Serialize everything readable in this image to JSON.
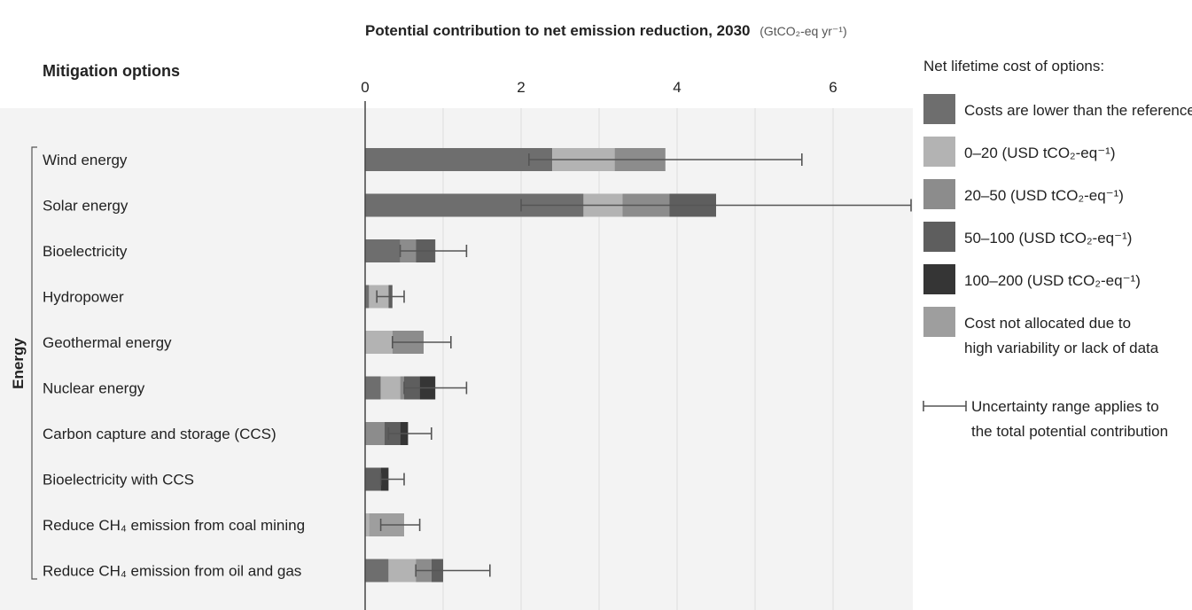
{
  "chart_data": {
    "type": "bar",
    "stacked": true,
    "orientation": "horizontal",
    "title": "Potential contribution to net emission reduction, 2030",
    "title_unit": "(GtCO₂-eq yr⁻¹)",
    "row_header": "Mitigation options",
    "group_label": "Energy",
    "xlim": [
      0,
      7
    ],
    "x_ticks": [
      0,
      2,
      4,
      6
    ],
    "grid": true,
    "legend_position": "right",
    "legend_title": "Net lifetime cost of options:",
    "categories": [
      "Wind energy",
      "Solar energy",
      "Bioelectricity",
      "Hydropower",
      "Geothermal energy",
      "Nuclear energy",
      "Carbon capture and storage (CCS)",
      "Bioelectricity with CCS",
      "Reduce CH₄ emission from coal mining",
      "Reduce CH₄ emission from oil and gas"
    ],
    "series": [
      {
        "name": "Costs are lower than the reference",
        "color": "#6e6e6e",
        "values": [
          2.4,
          2.8,
          0.45,
          0.05,
          0.0,
          0.2,
          0.0,
          0.0,
          0.0,
          0.3
        ]
      },
      {
        "name": "0–20 (USD tCO₂-eq⁻¹)",
        "color": "#b3b3b3",
        "values": [
          0.8,
          0.5,
          0.0,
          0.25,
          0.35,
          0.25,
          0.0,
          0.0,
          0.05,
          0.35
        ]
      },
      {
        "name": "20–50 (USD tCO₂-eq⁻¹)",
        "color": "#8c8c8c",
        "values": [
          0.65,
          0.6,
          0.2,
          0.0,
          0.4,
          0.05,
          0.25,
          0.0,
          0.0,
          0.2
        ]
      },
      {
        "name": "50–100 (USD tCO₂-eq⁻¹)",
        "color": "#5e5e5e",
        "values": [
          0.0,
          0.6,
          0.25,
          0.05,
          0.0,
          0.2,
          0.2,
          0.2,
          0.0,
          0.15
        ]
      },
      {
        "name": "100–200 (USD tCO₂-eq⁻¹)",
        "color": "#353535",
        "values": [
          0.0,
          0.0,
          0.0,
          0.0,
          0.0,
          0.2,
          0.1,
          0.1,
          0.0,
          0.0
        ]
      },
      {
        "name": "Cost not allocated due to high variability or lack of data",
        "color": "#9e9e9e",
        "values": [
          0.0,
          0.0,
          0.0,
          0.0,
          0.0,
          0.0,
          0.0,
          0.0,
          0.45,
          0.0
        ]
      }
    ],
    "uncertainty": [
      [
        2.1,
        5.6
      ],
      [
        2.0,
        7.0
      ],
      [
        0.45,
        1.3
      ],
      [
        0.15,
        0.5
      ],
      [
        0.35,
        1.1
      ],
      [
        0.5,
        1.3
      ],
      [
        0.3,
        0.85
      ],
      [
        0.2,
        0.5
      ],
      [
        0.2,
        0.7
      ],
      [
        0.65,
        1.6
      ]
    ],
    "uncertainty_legend": "Uncertainty range applies to the total potential contribution"
  }
}
